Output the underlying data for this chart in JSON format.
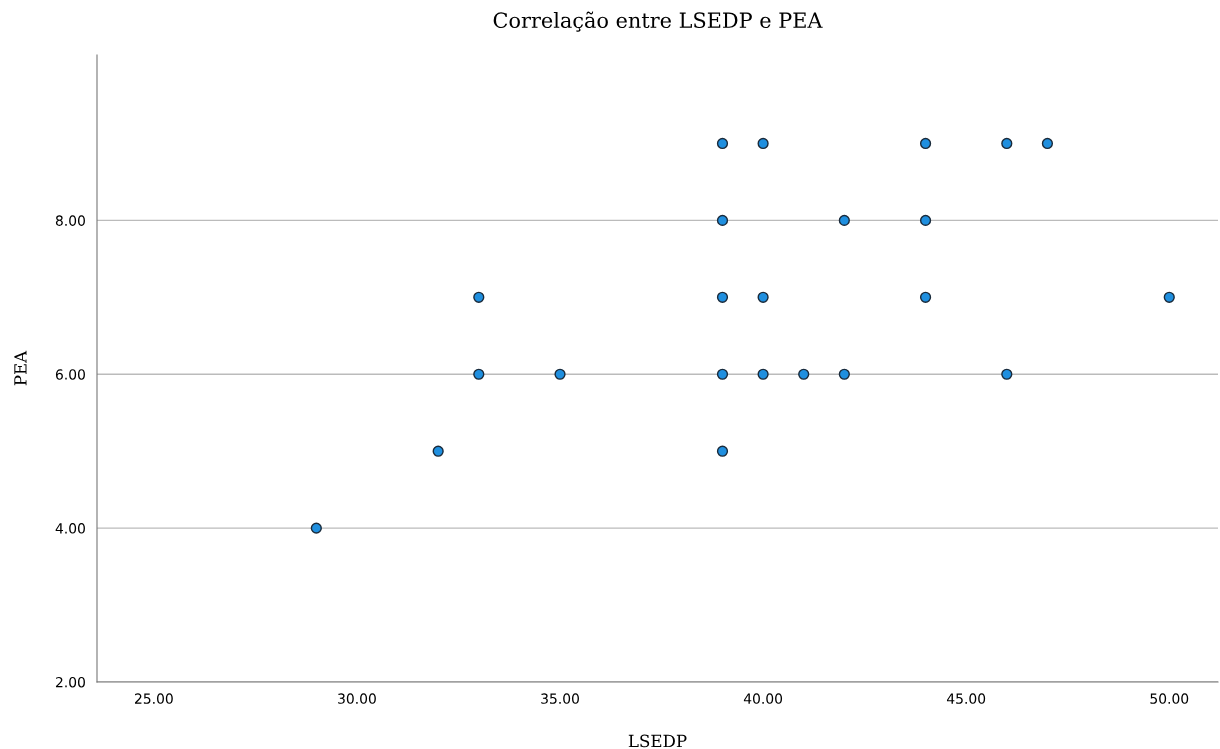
{
  "chart_data": {
    "type": "scatter",
    "title": "Correlação entre LSEDP e PEA",
    "xlabel": "LSEDP",
    "ylabel": "PEA",
    "x": [
      29,
      32,
      33,
      33,
      35,
      39,
      39,
      39,
      39,
      39,
      40,
      40,
      40,
      41,
      42,
      42,
      44,
      44,
      44,
      46,
      46,
      47,
      50
    ],
    "values": [
      4,
      5,
      7,
      6,
      6,
      9,
      8,
      7,
      6,
      5,
      9,
      7,
      6,
      6,
      8,
      6,
      9,
      8,
      7,
      9,
      6,
      9,
      7
    ],
    "color": "#1f8fdf",
    "marker": "circle",
    "grid": "y",
    "xlim": [
      23.6,
      51.2
    ],
    "ylim": [
      2,
      10.15
    ],
    "xticks": [
      {
        "value": 25,
        "label": "25.00"
      },
      {
        "value": 30,
        "label": "30.00"
      },
      {
        "value": 35,
        "label": "35.00"
      },
      {
        "value": 40,
        "label": "40.00"
      },
      {
        "value": 45,
        "label": "45.00"
      },
      {
        "value": 50,
        "label": "50.00"
      }
    ],
    "yticks": [
      {
        "value": 2,
        "label": "2.00"
      },
      {
        "value": 4,
        "label": "4.00"
      },
      {
        "value": 6,
        "label": "6.00"
      },
      {
        "value": 8,
        "label": "8.00"
      }
    ]
  }
}
